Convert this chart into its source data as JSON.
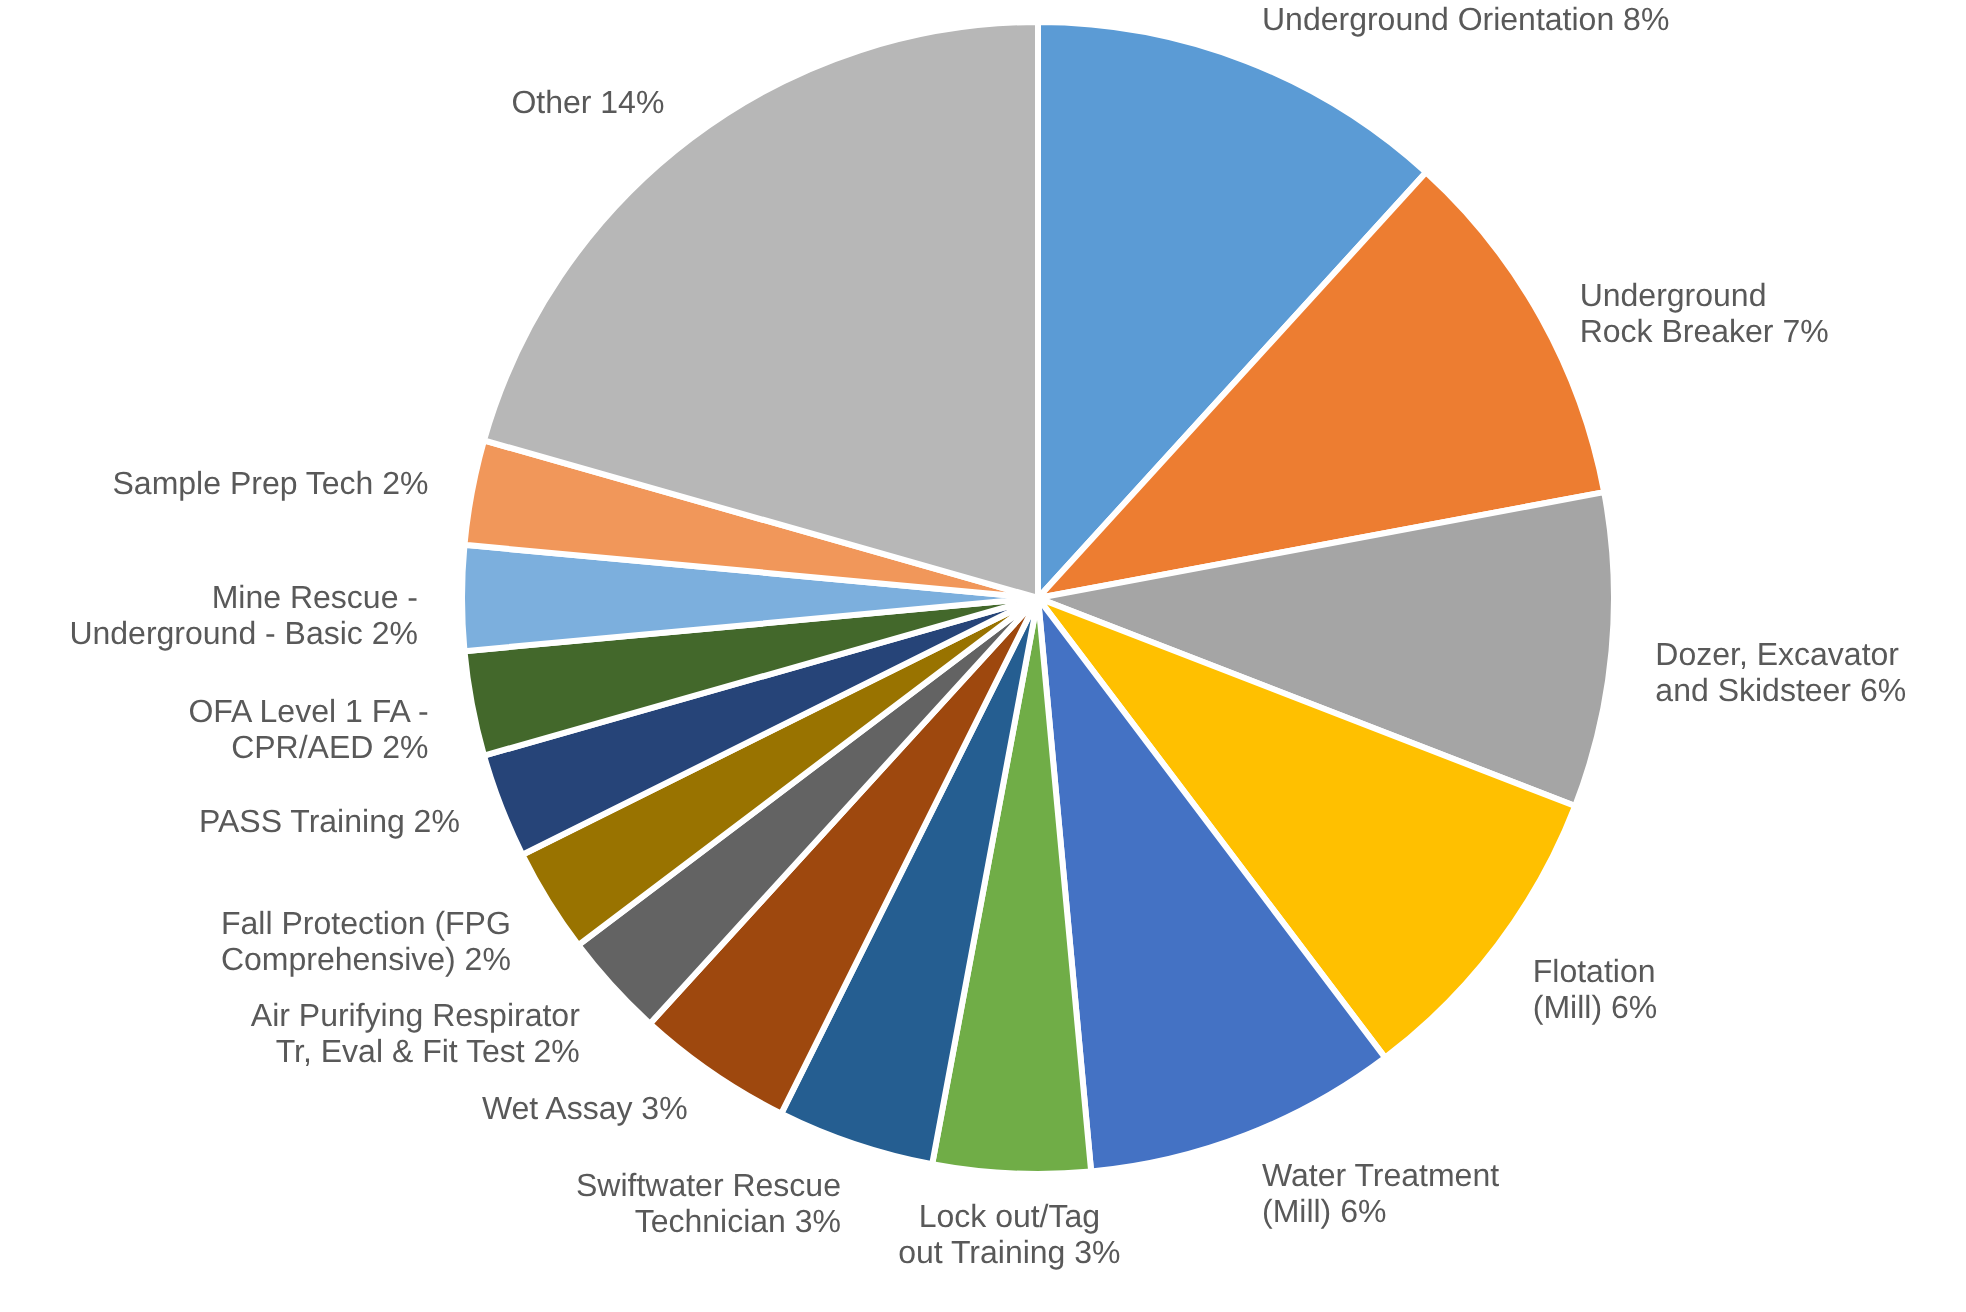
{
  "chart_data": {
    "type": "pie",
    "categories": [
      "Underground Orientation",
      "Underground\nRock Breaker",
      "Dozer, Excavator\nand Skidsteer",
      "Flotation\n(Mill)",
      "Water Treatment\n(Mill)",
      "Lock out/Tag\nout Training",
      "Swiftwater Rescue\nTechnician",
      "Wet Assay",
      "Air Purifying Respirator\nTr, Eval & Fit Test",
      "Fall Protection (FPG\nComprehensive)",
      "PASS Training",
      "OFA Level 1 FA -\nCPR/AED",
      "Mine Rescue -\nUnderground - Basic",
      "Sample Prep Tech",
      "Other"
    ],
    "values": [
      8,
      7,
      6,
      6,
      6,
      3,
      3,
      3,
      2,
      2,
      2,
      2,
      2,
      2,
      14
    ],
    "value_labels": [
      "8%",
      "7%",
      "6%",
      "6%",
      "6%",
      "3%",
      "3%",
      "3%",
      "2%",
      "2%",
      "2%",
      "2%",
      "2%",
      "2%",
      "14%"
    ],
    "colors": [
      "#5b9bd5",
      "#ed7d31",
      "#a5a5a5",
      "#ffc000",
      "#4472c4",
      "#70ad47",
      "#255e91",
      "#9e480e",
      "#636363",
      "#997300",
      "#264478",
      "#43682b",
      "#7cafdd",
      "#f1975a",
      "#b7b7b7"
    ]
  }
}
